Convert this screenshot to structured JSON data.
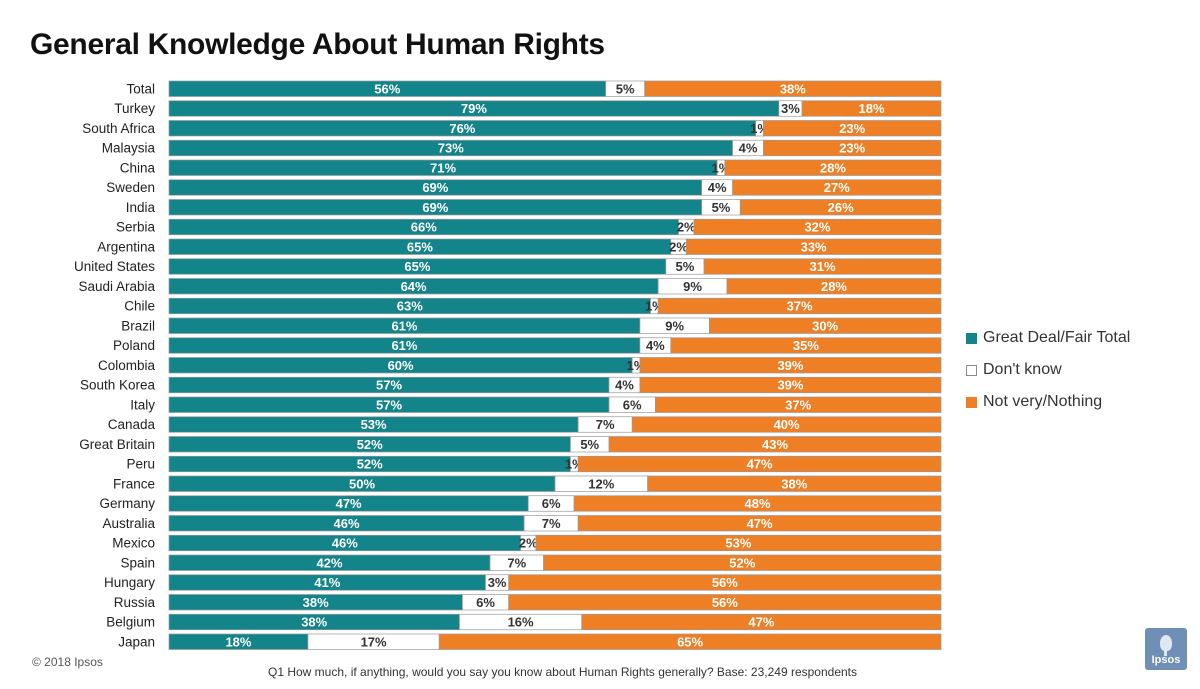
{
  "title": "General Knowledge About Human Rights",
  "copyright": "© 2018 Ipsos",
  "footnote": "Q1 How much, if anything, would you say you know about Human Rights generally? Base: 23,249 respondents",
  "logo_text": "Ipsos",
  "colors": {
    "great_deal": "#13848a",
    "dont_know": "#ffffff",
    "not_very": "#ee7f25",
    "border": "#9a9a9a"
  },
  "chart_data": {
    "type": "bar",
    "stacked": true,
    "orientation": "horizontal",
    "percent_scale": true,
    "categories": [
      "Total",
      "Turkey",
      "South Africa",
      "Malaysia",
      "China",
      "Sweden",
      "India",
      "Serbia",
      "Argentina",
      "United States",
      "Saudi Arabia",
      "Chile",
      "Brazil",
      "Poland",
      "Colombia",
      "South Korea",
      "Italy",
      "Canada",
      "Great Britain",
      "Peru",
      "France",
      "Germany",
      "Australia",
      "Mexico",
      "Spain",
      "Hungary",
      "Russia",
      "Belgium",
      "Japan"
    ],
    "series": [
      {
        "name": "Great Deal/Fair Total",
        "color": "#13848a",
        "values": [
          56,
          79,
          76,
          73,
          71,
          69,
          69,
          66,
          65,
          65,
          64,
          63,
          61,
          61,
          60,
          57,
          57,
          53,
          52,
          52,
          50,
          47,
          46,
          46,
          42,
          41,
          38,
          38,
          18
        ]
      },
      {
        "name": "Don't know",
        "color": "#ffffff",
        "values": [
          5,
          3,
          1,
          4,
          1,
          4,
          5,
          2,
          2,
          5,
          9,
          1,
          9,
          4,
          1,
          4,
          6,
          7,
          5,
          1,
          12,
          6,
          7,
          2,
          7,
          3,
          6,
          16,
          17
        ]
      },
      {
        "name": "Not very/Nothing",
        "color": "#ee7f25",
        "values": [
          38,
          18,
          23,
          23,
          28,
          27,
          26,
          32,
          33,
          31,
          28,
          37,
          30,
          35,
          39,
          39,
          37,
          40,
          43,
          47,
          38,
          48,
          47,
          53,
          52,
          56,
          56,
          47,
          65
        ]
      }
    ],
    "legend_position": "right",
    "grid": false
  }
}
